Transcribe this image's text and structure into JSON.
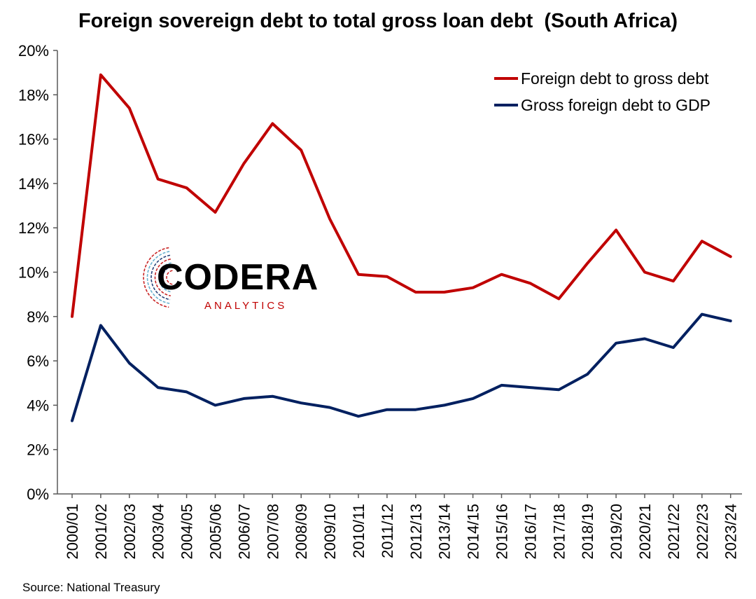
{
  "chart_data": {
    "type": "line",
    "title": "Foreign sovereign debt to total gross loan debt  (South Africa)",
    "source": "Source: National Treasury",
    "categories": [
      "2000/01",
      "2001/02",
      "2002/03",
      "2003/04",
      "2004/05",
      "2005/06",
      "2006/07",
      "2007/08",
      "2008/09",
      "2009/10",
      "2010/11",
      "2011/12",
      "2012/13",
      "2013/14",
      "2014/15",
      "2015/16",
      "2016/17",
      "2017/18",
      "2018/19",
      "2019/20",
      "2020/21",
      "2021/22",
      "2022/23",
      "2023/24"
    ],
    "series": [
      {
        "name": "Foreign debt to gross debt",
        "color": "#C00000",
        "values": [
          8.0,
          18.9,
          17.4,
          14.2,
          13.8,
          12.7,
          14.9,
          16.7,
          15.5,
          12.4,
          9.9,
          9.8,
          9.1,
          9.1,
          9.3,
          9.9,
          9.5,
          8.8,
          10.4,
          11.9,
          10.0,
          9.6,
          11.4,
          10.7
        ]
      },
      {
        "name": "Gross foreign debt to GDP",
        "color": "#002060",
        "values": [
          3.3,
          7.6,
          5.9,
          4.8,
          4.6,
          4.0,
          4.3,
          4.4,
          4.1,
          3.9,
          3.5,
          3.8,
          3.8,
          4.0,
          4.3,
          4.9,
          4.8,
          4.7,
          5.4,
          6.8,
          7.0,
          6.6,
          8.1,
          7.8
        ]
      }
    ],
    "y_ticks": [
      "0%",
      "2%",
      "4%",
      "6%",
      "8%",
      "10%",
      "12%",
      "14%",
      "16%",
      "18%",
      "20%"
    ],
    "ylim": [
      0,
      20
    ],
    "xlabel": "",
    "ylabel": "",
    "grid": false,
    "legend_position": "top-right"
  },
  "logo": {
    "name": "CODERA",
    "sub": "ANALYTICS",
    "colors": [
      "#C00000",
      "#002060",
      "#4FA3C7"
    ]
  }
}
